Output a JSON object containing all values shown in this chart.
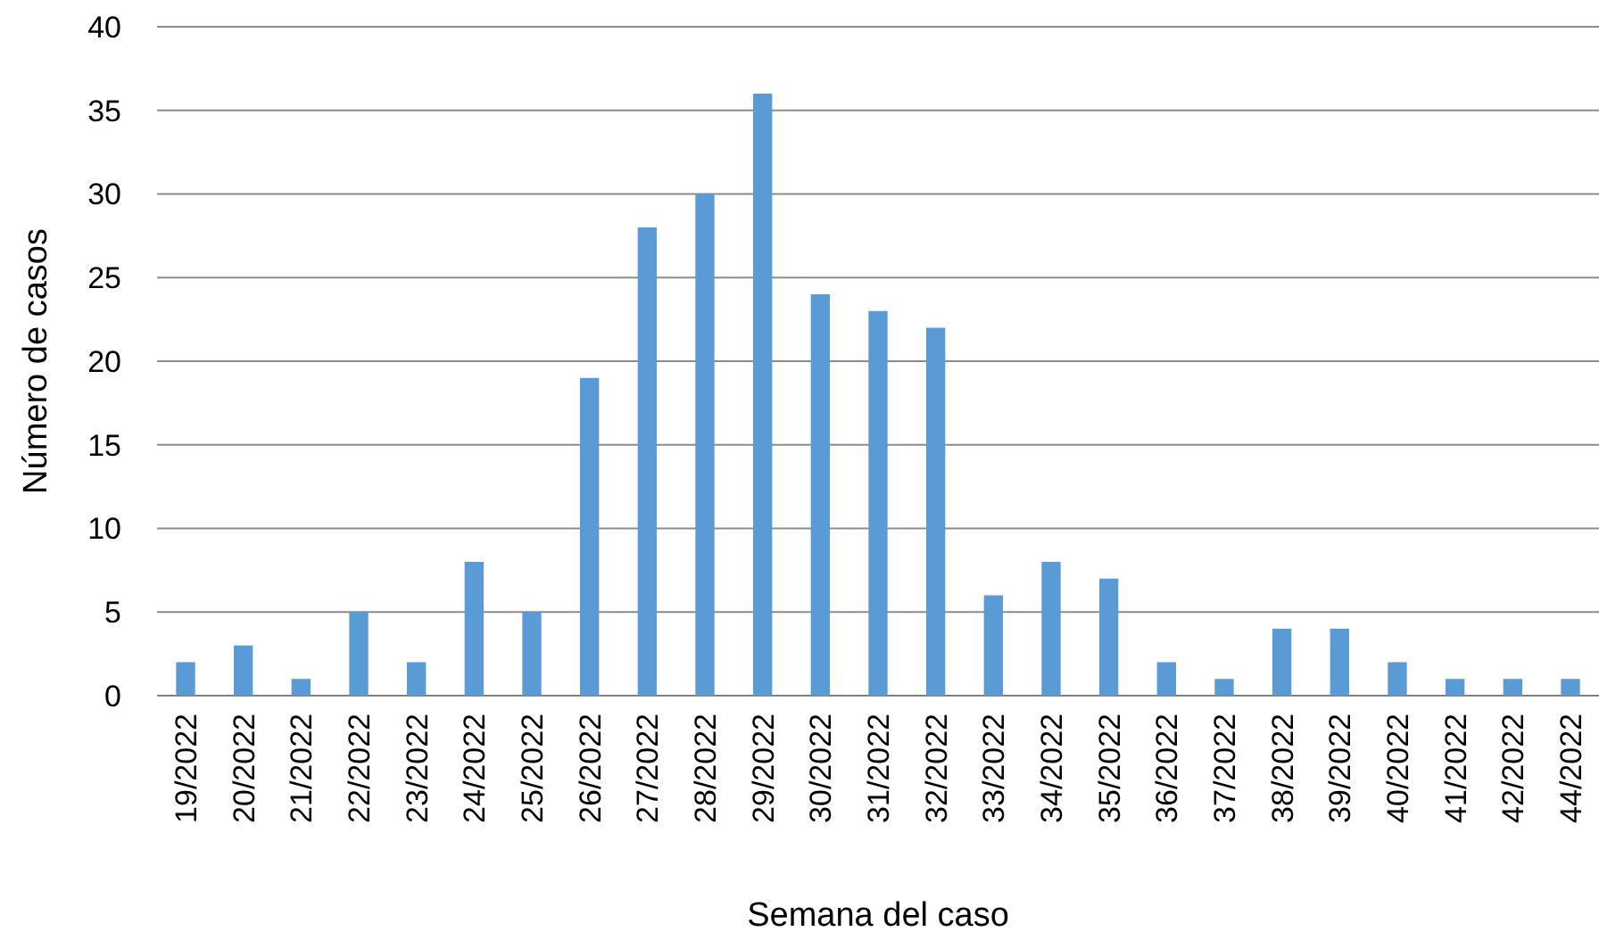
{
  "chart_data": {
    "type": "bar",
    "xlabel": "Semana del caso",
    "ylabel": "Número de casos",
    "categories": [
      "19/2022",
      "20/2022",
      "21/2022",
      "22/2022",
      "23/2022",
      "24/2022",
      "25/2022",
      "26/2022",
      "27/2022",
      "28/2022",
      "29/2022",
      "30/2022",
      "31/2022",
      "32/2022",
      "33/2022",
      "34/2022",
      "35/2022",
      "36/2022",
      "37/2022",
      "38/2022",
      "39/2022",
      "40/2022",
      "41/2022",
      "42/2022",
      "44/2022"
    ],
    "values": [
      2,
      3,
      1,
      5,
      2,
      8,
      5,
      19,
      28,
      30,
      36,
      24,
      23,
      22,
      6,
      8,
      7,
      2,
      1,
      4,
      4,
      2,
      1,
      1,
      1
    ],
    "color": "#5b9bd5",
    "ylim": [
      0,
      40
    ],
    "yticks": [
      0,
      5,
      10,
      15,
      20,
      25,
      30,
      35,
      40
    ],
    "grid": "y"
  }
}
